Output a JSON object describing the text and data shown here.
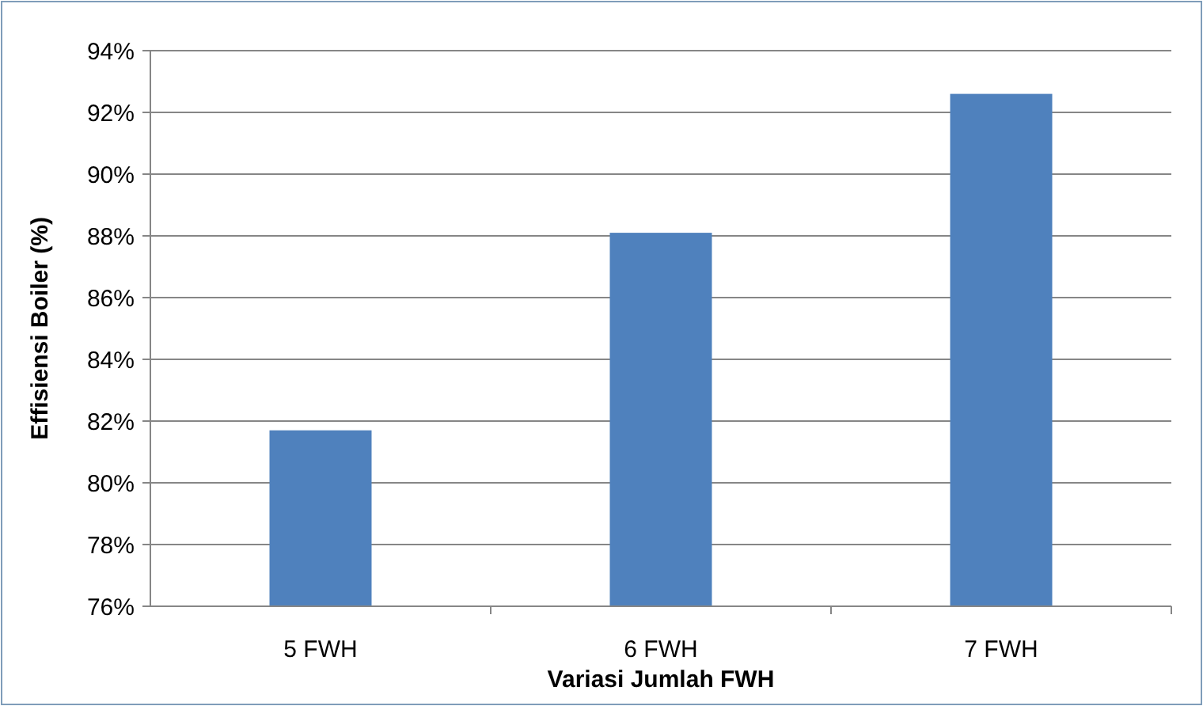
{
  "chart_data": {
    "type": "bar",
    "xlabel": "Variasi Jumlah FWH",
    "ylabel": "Effisiensi Boiler (%)",
    "categories": [
      "5 FWH",
      "6 FWH",
      "7 FWH"
    ],
    "values": [
      81.7,
      88.1,
      92.6
    ],
    "color": "#4f81bd",
    "ylim": [
      76,
      94
    ],
    "yticks": [
      {
        "value": 76,
        "label": "76%"
      },
      {
        "value": 78,
        "label": "78%"
      },
      {
        "value": 80,
        "label": "80%"
      },
      {
        "value": 82,
        "label": "82%"
      },
      {
        "value": 84,
        "label": "84%"
      },
      {
        "value": 86,
        "label": "86%"
      },
      {
        "value": 88,
        "label": "88%"
      },
      {
        "value": 90,
        "label": "90%"
      },
      {
        "value": 92,
        "label": "92%"
      },
      {
        "value": 94,
        "label": "94%"
      }
    ],
    "grid": "y"
  }
}
